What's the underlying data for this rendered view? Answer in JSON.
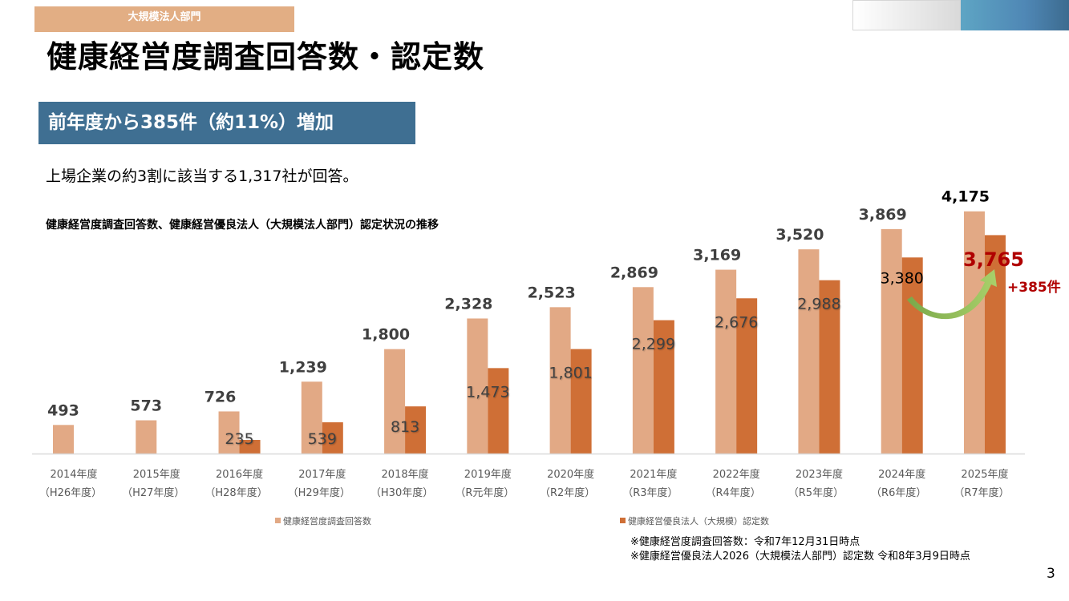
{
  "header": {
    "dept_tag": "大規模法人部門",
    "title": "健康経営度調査回答数・認定数"
  },
  "highlight": "前年度から385件（約11%）増加",
  "subtext": "上場企業の約3割に該当する1,317社が回答。",
  "colors": {
    "responses": "#e2a985",
    "certified": "#cf6f36",
    "highlight_box": "#3f6f92",
    "dept_tag": "#e2ae84",
    "emphasis": "#b00000",
    "arrow": "#8fbc54"
  },
  "chart_data": {
    "type": "bar",
    "title": "健康経営度調査回答数、健康経営優良法人（大規模法人部門）認定状況の推移",
    "categories": [
      "2014年度",
      "2015年度",
      "2016年度",
      "2017年度",
      "2018年度",
      "2019年度",
      "2020年度",
      "2021年度",
      "2022年度",
      "2023年度",
      "2024年度",
      "2025年度"
    ],
    "category_sublabels": [
      "（H26年度）",
      "（H27年度）",
      "（H28年度）",
      "（H29年度）",
      "（H30年度）",
      "（R元年度）",
      "（R2年度）",
      "（R3年度）",
      "（R4年度）",
      "（R5年度）",
      "（R6年度）",
      "（R7年度）"
    ],
    "series": [
      {
        "name": "健康経営度調査回答数",
        "values": [
          493,
          573,
          726,
          1239,
          1800,
          2328,
          2523,
          2869,
          3169,
          3520,
          3869,
          4175
        ],
        "labels": [
          "493",
          "573",
          "726",
          "1,239",
          "1,800",
          "2,328",
          "2,523",
          "2,869",
          "3,169",
          "3,520",
          "3,869",
          "4,175"
        ]
      },
      {
        "name": "健康経営優良法人（大規模）認定数",
        "values": [
          null,
          null,
          235,
          539,
          813,
          1473,
          1801,
          2299,
          2676,
          2988,
          3380,
          3765
        ],
        "labels": [
          "",
          "",
          "235",
          "539",
          "813",
          "1,473",
          "1,801",
          "2,299",
          "2,676",
          "2,988",
          "3,380",
          "3,765"
        ]
      }
    ],
    "ylim": [
      0,
      4200
    ],
    "grid": false,
    "legend": "bottom",
    "annotations": {
      "increase": "+385件"
    }
  },
  "notes": [
    "※健康経営度調査回答数：令和7年12月31日時点",
    "※健康経営優良法人2026（大規模法人部門）認定数  令和8年3月9日時点"
  ],
  "page_number": "3"
}
